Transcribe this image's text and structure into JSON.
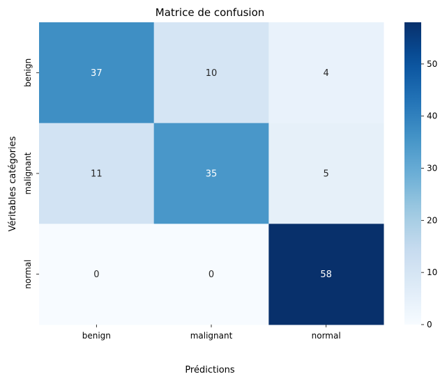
{
  "chart_data": {
    "type": "heatmap",
    "title": "Matrice de confusion",
    "xlabel": "Prédictions",
    "ylabel": "Véritables catégories",
    "x_categories": [
      "benign",
      "malignant",
      "normal"
    ],
    "y_categories": [
      "benign",
      "malignant",
      "normal"
    ],
    "values": [
      [
        37,
        10,
        4
      ],
      [
        11,
        35,
        5
      ],
      [
        0,
        0,
        58
      ]
    ],
    "colorbar": {
      "min": 0,
      "max": 58,
      "ticks": [
        0,
        10,
        20,
        30,
        40,
        50
      ],
      "colormap": "Blues"
    },
    "annotations": true
  }
}
